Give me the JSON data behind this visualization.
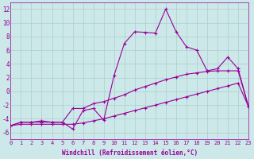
{
  "hours": [
    0,
    1,
    2,
    3,
    4,
    5,
    6,
    7,
    8,
    9,
    10,
    11,
    12,
    13,
    14,
    15,
    16,
    17,
    18,
    19,
    20,
    21,
    22,
    23
  ],
  "temp_curve": [
    -5.0,
    -4.5,
    -4.5,
    -4.3,
    -4.5,
    -4.5,
    -5.5,
    -2.8,
    -2.5,
    -4.2,
    2.3,
    7.0,
    8.7,
    8.6,
    8.5,
    12.0,
    8.7,
    6.5,
    6.0,
    3.0,
    3.3,
    5.0,
    3.3,
    -2.2
  ],
  "line_upper": [
    -5.0,
    -4.5,
    -4.5,
    -4.5,
    -4.5,
    -4.5,
    -2.5,
    -2.5,
    -1.8,
    -1.5,
    -1.0,
    -0.5,
    0.2,
    0.7,
    1.2,
    1.7,
    2.1,
    2.5,
    2.7,
    2.9,
    3.0,
    3.0,
    3.0,
    -2.2
  ],
  "line_lower": [
    -5.0,
    -4.8,
    -4.8,
    -4.8,
    -4.8,
    -4.8,
    -4.8,
    -4.6,
    -4.3,
    -4.0,
    -3.6,
    -3.2,
    -2.8,
    -2.4,
    -2.0,
    -1.6,
    -1.2,
    -0.8,
    -0.4,
    0.0,
    0.4,
    0.8,
    1.2,
    -2.2
  ],
  "line_color": "#990099",
  "background_color": "#cce8e8",
  "grid_color": "#aacfcf",
  "xlabel": "Windchill (Refroidissement éolien,°C)",
  "ylim": [
    -7,
    13
  ],
  "xlim": [
    0,
    23
  ],
  "yticks": [
    -6,
    -4,
    -2,
    0,
    2,
    4,
    6,
    8,
    10,
    12
  ],
  "xticks": [
    0,
    1,
    2,
    3,
    4,
    5,
    6,
    7,
    8,
    9,
    10,
    11,
    12,
    13,
    14,
    15,
    16,
    17,
    18,
    19,
    20,
    21,
    22,
    23
  ]
}
